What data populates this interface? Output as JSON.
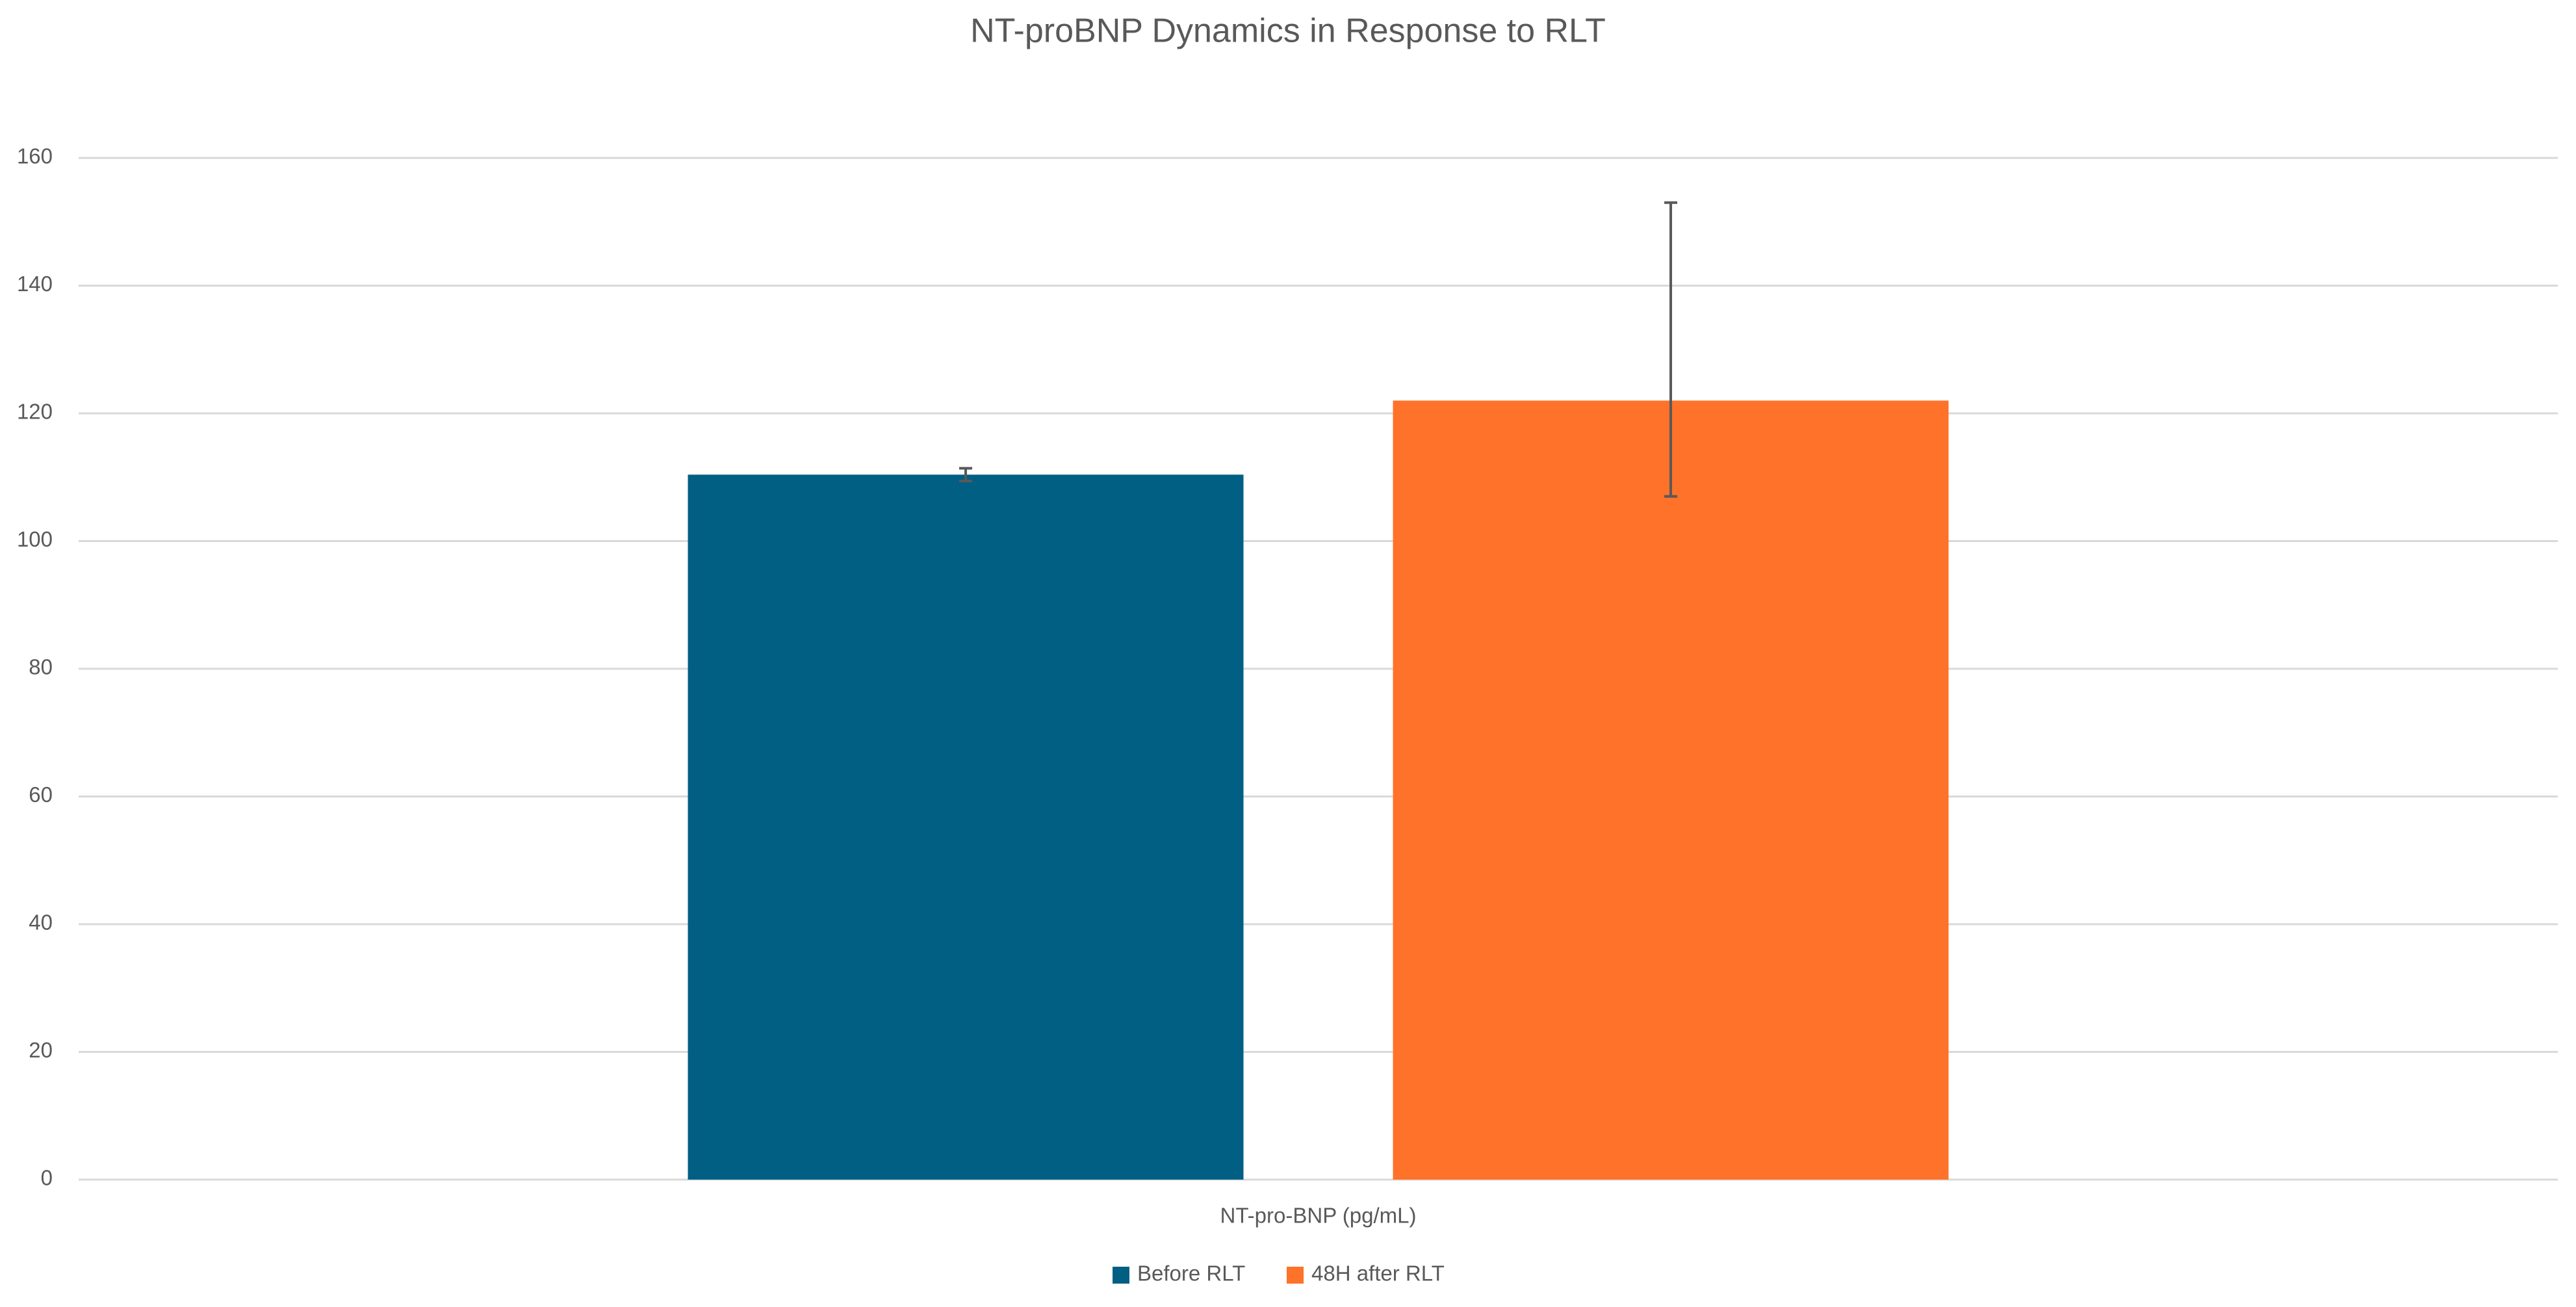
{
  "chart_data": {
    "type": "bar",
    "title": "NT-proBNP Dynamics in Response to RLT",
    "categories": [
      "NT-pro-BNP (pg/mL)"
    ],
    "series": [
      {
        "name": "Before RLT",
        "color": "#005f83",
        "values": [
          110.4
        ],
        "error_plus": [
          1
        ],
        "error_minus": [
          1
        ]
      },
      {
        "name": "48H after RLT",
        "color": "#ff7229",
        "values": [
          122
        ],
        "error_plus": [
          31
        ],
        "error_minus": [
          15
        ]
      }
    ],
    "ylim": [
      0,
      160
    ],
    "yticks": [
      0,
      20,
      40,
      60,
      80,
      100,
      120,
      140,
      160
    ],
    "grid": true,
    "legend": "bottom"
  }
}
